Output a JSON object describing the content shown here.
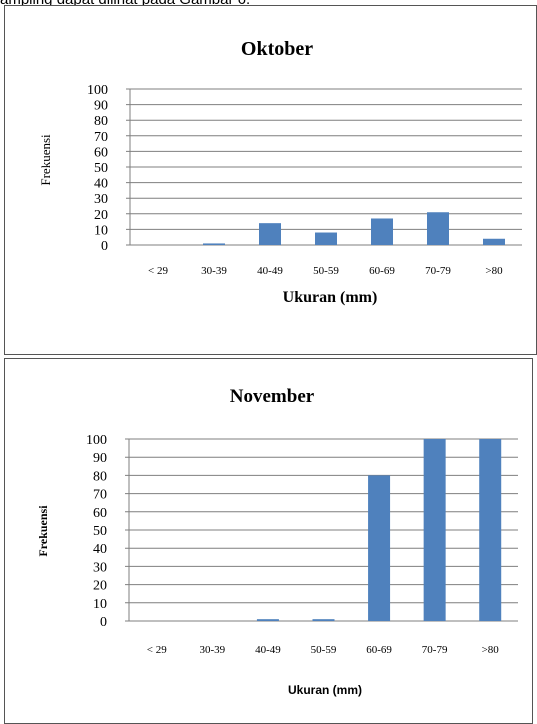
{
  "caption": "ampling dapat dilihat pada Gambar 6.",
  "colors": {
    "bar": "#4f81bd",
    "grid": "#7f7f7f",
    "axis": "#7f7f7f"
  },
  "chart_data": [
    {
      "type": "bar",
      "title": "Oktober",
      "xlabel": "Ukuran (mm)",
      "ylabel": "Frekuensi",
      "categories": [
        "< 29",
        "30-39",
        "40-49",
        "50-59",
        "60-69",
        "70-79",
        ">80"
      ],
      "values": [
        0,
        1,
        14,
        8,
        17,
        21,
        4
      ],
      "ylim": [
        0,
        100
      ],
      "yticks": [
        "0",
        "10",
        "20",
        "30",
        "40",
        "50",
        "60",
        "70",
        "80",
        "90",
        "100"
      ],
      "grid": true,
      "legend": "none"
    },
    {
      "type": "bar",
      "title": "November",
      "xlabel": "Ukuran (mm)",
      "ylabel": "Frekuensi",
      "categories": [
        "< 29",
        "30-39",
        "40-49",
        "50-59",
        "60-69",
        "70-79",
        ">80"
      ],
      "values": [
        0,
        0,
        1,
        1,
        80,
        100,
        100
      ],
      "ylim": [
        0,
        100
      ],
      "yticks": [
        "0",
        "10",
        "20",
        "30",
        "40",
        "50",
        "60",
        "70",
        "80",
        "90",
        "100"
      ],
      "grid": true,
      "legend": "none"
    }
  ]
}
